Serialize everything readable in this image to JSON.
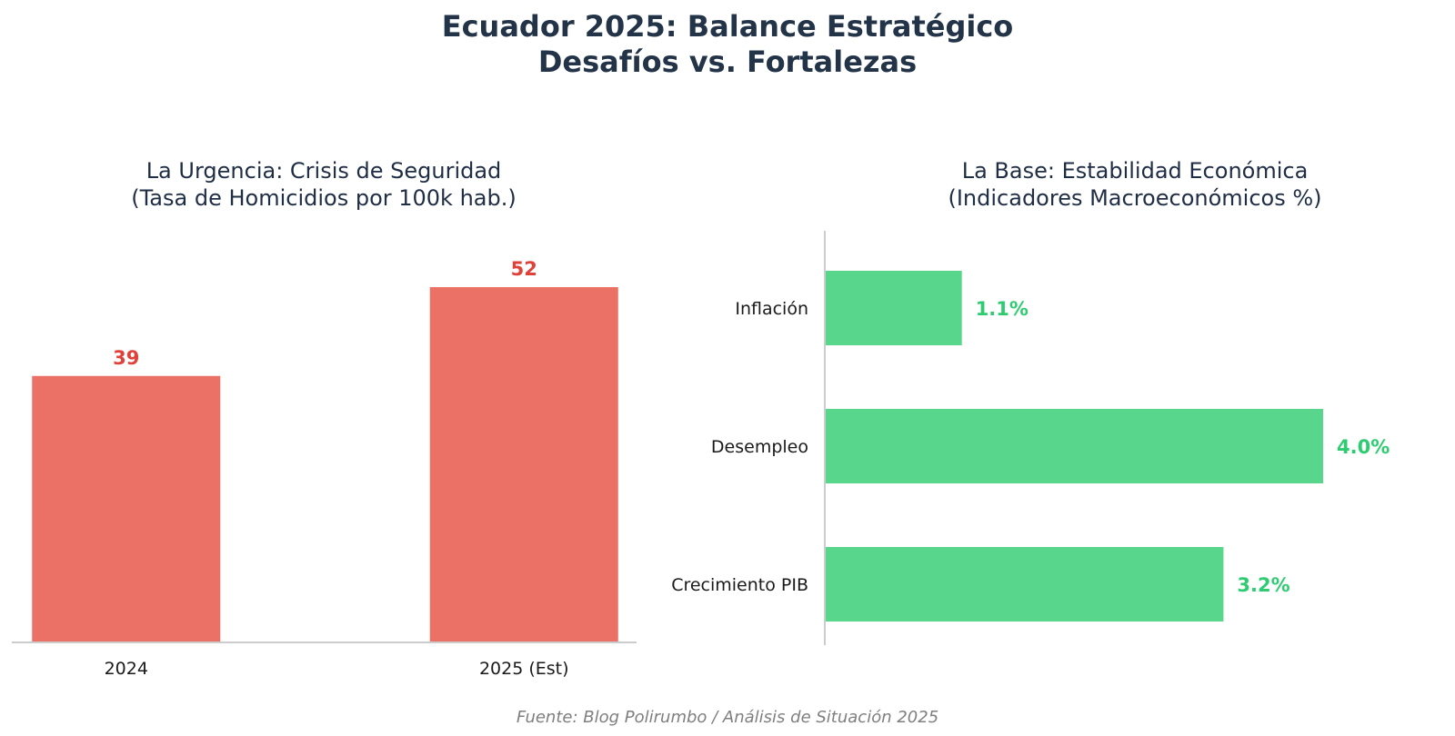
{
  "figure": {
    "title_line1": "Ecuador 2025: Balance Estratégico",
    "title_line2": "Desafíos vs. Fortalezas",
    "source": "Fuente: Blog Polirumbo / Análisis de Situación 2025",
    "title_color": "#233448",
    "source_color": "#7f7f7f",
    "axis_color": "#cccccc"
  },
  "chart_data": [
    {
      "type": "bar",
      "orientation": "vertical",
      "title_line1": "La Urgencia: Crisis de Seguridad",
      "title_line2": "(Tasa de Homicidios por 100k hab.)",
      "categories": [
        "2024",
        "2025 (Est)"
      ],
      "values": [
        39,
        52
      ],
      "value_labels": [
        "39",
        "52"
      ],
      "ylim": [
        0,
        52
      ],
      "bar_color": "#eb7066",
      "label_color": "#e0423a",
      "grid": false
    },
    {
      "type": "bar",
      "orientation": "horizontal",
      "title_line1": "La Base: Estabilidad Económica",
      "title_line2": "(Indicadores Macroeconómicos %)",
      "categories": [
        "Inflación",
        "Desempleo",
        "Crecimiento PIB"
      ],
      "values": [
        1.1,
        4.0,
        3.2
      ],
      "value_labels": [
        "1.1%",
        "4.0%",
        "3.2%"
      ],
      "xlim": [
        0,
        4.0
      ],
      "bar_color": "#58d68c",
      "label_color": "#2ecc71",
      "grid": false
    }
  ]
}
